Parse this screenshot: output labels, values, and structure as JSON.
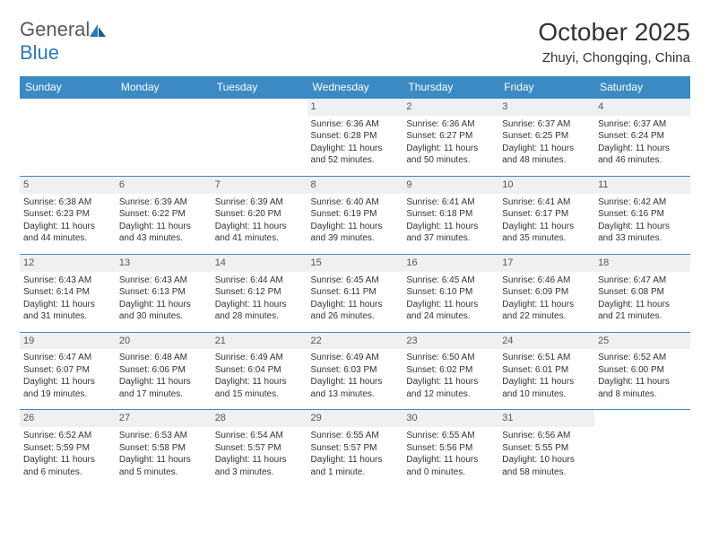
{
  "brand": {
    "part1": "General",
    "part2": "Blue"
  },
  "title": "October 2025",
  "location": "Zhuyi, Chongqing, China",
  "colors": {
    "header_bg": "#3b8ac4",
    "header_text": "#ffffff",
    "daynum_bg": "#eef0f2",
    "border": "#3b8ac4",
    "text": "#333333",
    "brand_gray": "#5a5a5a",
    "brand_blue": "#2d79b9",
    "page_bg": "#ffffff"
  },
  "typography": {
    "title_fontsize": 28,
    "location_fontsize": 15,
    "header_fontsize": 12,
    "cell_fontsize": 10,
    "daynum_fontsize": 11
  },
  "day_headers": [
    "Sunday",
    "Monday",
    "Tuesday",
    "Wednesday",
    "Thursday",
    "Friday",
    "Saturday"
  ],
  "weeks": [
    [
      {
        "n": "",
        "sr": "",
        "ss": "",
        "dl": ""
      },
      {
        "n": "",
        "sr": "",
        "ss": "",
        "dl": ""
      },
      {
        "n": "",
        "sr": "",
        "ss": "",
        "dl": ""
      },
      {
        "n": "1",
        "sr": "Sunrise: 6:36 AM",
        "ss": "Sunset: 6:28 PM",
        "dl": "Daylight: 11 hours and 52 minutes."
      },
      {
        "n": "2",
        "sr": "Sunrise: 6:36 AM",
        "ss": "Sunset: 6:27 PM",
        "dl": "Daylight: 11 hours and 50 minutes."
      },
      {
        "n": "3",
        "sr": "Sunrise: 6:37 AM",
        "ss": "Sunset: 6:25 PM",
        "dl": "Daylight: 11 hours and 48 minutes."
      },
      {
        "n": "4",
        "sr": "Sunrise: 6:37 AM",
        "ss": "Sunset: 6:24 PM",
        "dl": "Daylight: 11 hours and 46 minutes."
      }
    ],
    [
      {
        "n": "5",
        "sr": "Sunrise: 6:38 AM",
        "ss": "Sunset: 6:23 PM",
        "dl": "Daylight: 11 hours and 44 minutes."
      },
      {
        "n": "6",
        "sr": "Sunrise: 6:39 AM",
        "ss": "Sunset: 6:22 PM",
        "dl": "Daylight: 11 hours and 43 minutes."
      },
      {
        "n": "7",
        "sr": "Sunrise: 6:39 AM",
        "ss": "Sunset: 6:20 PM",
        "dl": "Daylight: 11 hours and 41 minutes."
      },
      {
        "n": "8",
        "sr": "Sunrise: 6:40 AM",
        "ss": "Sunset: 6:19 PM",
        "dl": "Daylight: 11 hours and 39 minutes."
      },
      {
        "n": "9",
        "sr": "Sunrise: 6:41 AM",
        "ss": "Sunset: 6:18 PM",
        "dl": "Daylight: 11 hours and 37 minutes."
      },
      {
        "n": "10",
        "sr": "Sunrise: 6:41 AM",
        "ss": "Sunset: 6:17 PM",
        "dl": "Daylight: 11 hours and 35 minutes."
      },
      {
        "n": "11",
        "sr": "Sunrise: 6:42 AM",
        "ss": "Sunset: 6:16 PM",
        "dl": "Daylight: 11 hours and 33 minutes."
      }
    ],
    [
      {
        "n": "12",
        "sr": "Sunrise: 6:43 AM",
        "ss": "Sunset: 6:14 PM",
        "dl": "Daylight: 11 hours and 31 minutes."
      },
      {
        "n": "13",
        "sr": "Sunrise: 6:43 AM",
        "ss": "Sunset: 6:13 PM",
        "dl": "Daylight: 11 hours and 30 minutes."
      },
      {
        "n": "14",
        "sr": "Sunrise: 6:44 AM",
        "ss": "Sunset: 6:12 PM",
        "dl": "Daylight: 11 hours and 28 minutes."
      },
      {
        "n": "15",
        "sr": "Sunrise: 6:45 AM",
        "ss": "Sunset: 6:11 PM",
        "dl": "Daylight: 11 hours and 26 minutes."
      },
      {
        "n": "16",
        "sr": "Sunrise: 6:45 AM",
        "ss": "Sunset: 6:10 PM",
        "dl": "Daylight: 11 hours and 24 minutes."
      },
      {
        "n": "17",
        "sr": "Sunrise: 6:46 AM",
        "ss": "Sunset: 6:09 PM",
        "dl": "Daylight: 11 hours and 22 minutes."
      },
      {
        "n": "18",
        "sr": "Sunrise: 6:47 AM",
        "ss": "Sunset: 6:08 PM",
        "dl": "Daylight: 11 hours and 21 minutes."
      }
    ],
    [
      {
        "n": "19",
        "sr": "Sunrise: 6:47 AM",
        "ss": "Sunset: 6:07 PM",
        "dl": "Daylight: 11 hours and 19 minutes."
      },
      {
        "n": "20",
        "sr": "Sunrise: 6:48 AM",
        "ss": "Sunset: 6:06 PM",
        "dl": "Daylight: 11 hours and 17 minutes."
      },
      {
        "n": "21",
        "sr": "Sunrise: 6:49 AM",
        "ss": "Sunset: 6:04 PM",
        "dl": "Daylight: 11 hours and 15 minutes."
      },
      {
        "n": "22",
        "sr": "Sunrise: 6:49 AM",
        "ss": "Sunset: 6:03 PM",
        "dl": "Daylight: 11 hours and 13 minutes."
      },
      {
        "n": "23",
        "sr": "Sunrise: 6:50 AM",
        "ss": "Sunset: 6:02 PM",
        "dl": "Daylight: 11 hours and 12 minutes."
      },
      {
        "n": "24",
        "sr": "Sunrise: 6:51 AM",
        "ss": "Sunset: 6:01 PM",
        "dl": "Daylight: 11 hours and 10 minutes."
      },
      {
        "n": "25",
        "sr": "Sunrise: 6:52 AM",
        "ss": "Sunset: 6:00 PM",
        "dl": "Daylight: 11 hours and 8 minutes."
      }
    ],
    [
      {
        "n": "26",
        "sr": "Sunrise: 6:52 AM",
        "ss": "Sunset: 5:59 PM",
        "dl": "Daylight: 11 hours and 6 minutes."
      },
      {
        "n": "27",
        "sr": "Sunrise: 6:53 AM",
        "ss": "Sunset: 5:58 PM",
        "dl": "Daylight: 11 hours and 5 minutes."
      },
      {
        "n": "28",
        "sr": "Sunrise: 6:54 AM",
        "ss": "Sunset: 5:57 PM",
        "dl": "Daylight: 11 hours and 3 minutes."
      },
      {
        "n": "29",
        "sr": "Sunrise: 6:55 AM",
        "ss": "Sunset: 5:57 PM",
        "dl": "Daylight: 11 hours and 1 minute."
      },
      {
        "n": "30",
        "sr": "Sunrise: 6:55 AM",
        "ss": "Sunset: 5:56 PM",
        "dl": "Daylight: 11 hours and 0 minutes."
      },
      {
        "n": "31",
        "sr": "Sunrise: 6:56 AM",
        "ss": "Sunset: 5:55 PM",
        "dl": "Daylight: 10 hours and 58 minutes."
      },
      {
        "n": "",
        "sr": "",
        "ss": "",
        "dl": ""
      }
    ]
  ]
}
